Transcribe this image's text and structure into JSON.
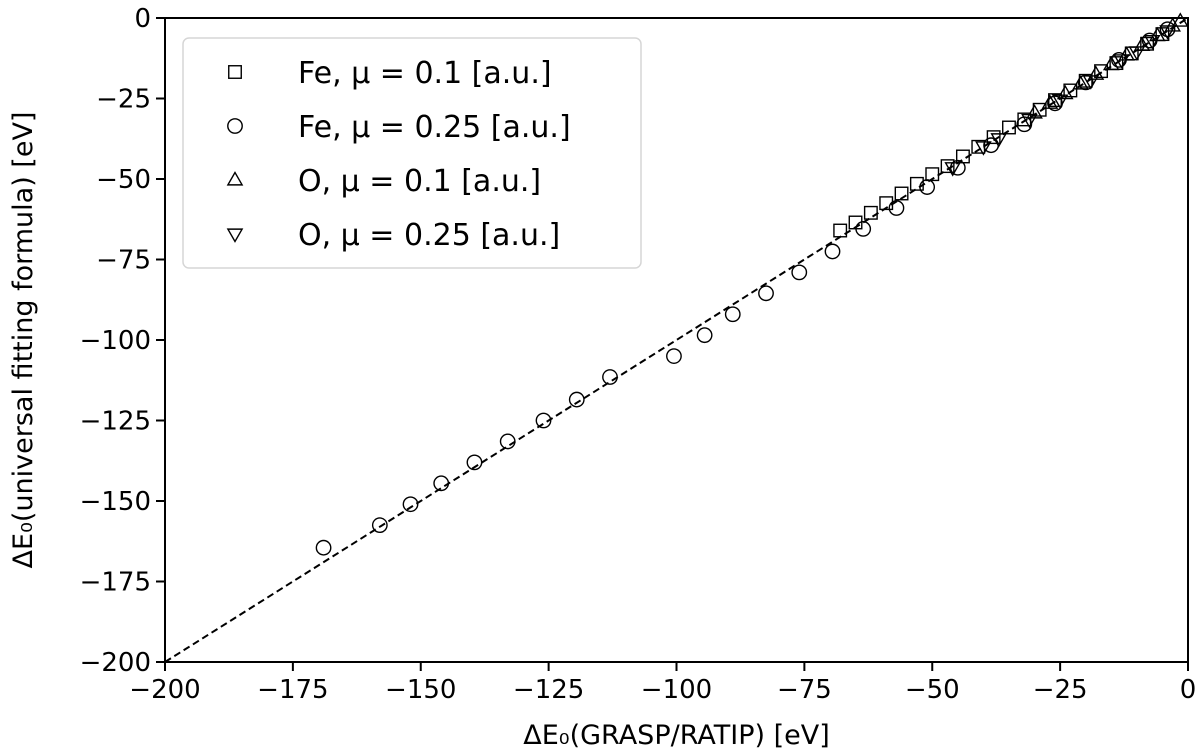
{
  "chart_data": {
    "type": "scatter",
    "xlabel": "ΔE₀(GRASP/RATIP) [eV]",
    "ylabel": "ΔE₀(universal fitting formula) [eV]",
    "xlim": [
      -200,
      0
    ],
    "ylim": [
      -200,
      0
    ],
    "xticks": [
      -200,
      -175,
      -150,
      -125,
      -100,
      -75,
      -50,
      -25,
      0
    ],
    "yticks": [
      -200,
      -175,
      -150,
      -125,
      -100,
      -75,
      -50,
      -25,
      0
    ],
    "xtick_labels": [
      "−200",
      "−175",
      "−150",
      "−125",
      "−100",
      "−75",
      "−50",
      "−25",
      "0"
    ],
    "ytick_labels": [
      "−200",
      "−175",
      "−150",
      "−125",
      "−100",
      "−75",
      "−50",
      "−25",
      "0"
    ],
    "grid": false,
    "legend_position": "top-left",
    "reference_line": {
      "style": "dashed",
      "from": [
        -200,
        -200
      ],
      "to": [
        0,
        0
      ]
    },
    "series": [
      {
        "name": "Fe, μ = 0.1 [a.u.]",
        "marker": "square",
        "x": [
          -68,
          -65,
          -62,
          -59,
          -56,
          -53,
          -50,
          -47,
          -44,
          -41,
          -38,
          -35,
          -32,
          -29,
          -26,
          -23,
          -20,
          -17,
          -14,
          -11,
          -8,
          -5
        ],
        "y": [
          -66,
          -63.5,
          -60.5,
          -57.5,
          -54.5,
          -51.5,
          -48.5,
          -46,
          -43,
          -40,
          -37,
          -34,
          -31.5,
          -28.5,
          -25.5,
          -22.5,
          -19.5,
          -16.5,
          -14,
          -11,
          -8,
          -5
        ]
      },
      {
        "name": "Fe, μ = 0.25 [a.u.]",
        "marker": "circle",
        "x": [
          -169,
          -158,
          -152,
          -146,
          -139.5,
          -133,
          -126,
          -119.5,
          -113,
          -100.5,
          -94.5,
          -89,
          -82.5,
          -76,
          -69.5,
          -63.5,
          -57,
          -51,
          -45,
          -38.5,
          -32,
          -26,
          -20,
          -13.5,
          -7.5,
          -4
        ],
        "y": [
          -164.5,
          -157.5,
          -151,
          -144.5,
          -138,
          -131.5,
          -125,
          -118.5,
          -111.5,
          -105,
          -98.5,
          -92,
          -85.5,
          -79,
          -72.5,
          -65.5,
          -59,
          -52.5,
          -46.5,
          -39.5,
          -33,
          -26.5,
          -20,
          -13,
          -7,
          -3.5
        ]
      },
      {
        "name": "O, μ = 0.1 [a.u.]",
        "marker": "triangle-up",
        "x": [
          -30,
          -27,
          -24,
          -21,
          -18,
          -15,
          -12,
          -9,
          -6,
          -3,
          -1.5
        ],
        "y": [
          -29.5,
          -26.5,
          -23.5,
          -20.5,
          -17.5,
          -14.5,
          -11.5,
          -8.5,
          -5.5,
          -2.5,
          -1
        ]
      },
      {
        "name": "O, μ = 0.25 [a.u.]",
        "marker": "triangle-down",
        "x": [
          -46,
          -40,
          -37,
          -31,
          -25,
          -19,
          -13,
          -10,
          -7,
          -4
        ],
        "y": [
          -46.5,
          -40,
          -37.5,
          -31.5,
          -25.5,
          -19.5,
          -13,
          -10.5,
          -7,
          -4
        ]
      }
    ]
  }
}
